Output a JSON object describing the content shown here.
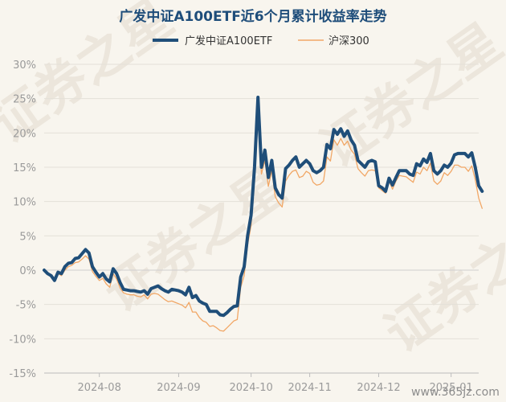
{
  "chart_data": {
    "type": "line",
    "title": "广发中证A100ETF近6个月累计收益率走势",
    "y_ticks": [
      "30%",
      "25%",
      "20%",
      "15%",
      "10%",
      "5%",
      "0%",
      "-5%",
      "-10%",
      "-15%"
    ],
    "x_ticks": [
      "2024-08",
      "2024-09",
      "2024-10",
      "2024-11",
      "2024-12",
      "2025-01"
    ],
    "ylim": [
      -15,
      30
    ],
    "xlim": [
      0,
      126
    ],
    "grid": true,
    "legend_position": "top",
    "series": [
      {
        "name": "广发中证A100ETF",
        "color": "#1f4e79",
        "values": [
          0.0,
          -0.5,
          -0.8,
          -1.5,
          -0.3,
          -0.5,
          0.5,
          1.0,
          1.1,
          1.7,
          1.8,
          2.4,
          3.0,
          2.5,
          0.5,
          -0.3,
          -1.0,
          -0.5,
          -1.3,
          -1.7,
          0.2,
          -0.5,
          -1.8,
          -2.8,
          -2.9,
          -3.0,
          -3.0,
          -3.1,
          -3.2,
          -3.0,
          -3.5,
          -2.7,
          -2.5,
          -2.3,
          -2.7,
          -3.0,
          -3.2,
          -2.8,
          -2.9,
          -3.0,
          -3.2,
          -3.6,
          -2.5,
          -4.0,
          -3.7,
          -4.5,
          -4.8,
          -5.0,
          -6.0,
          -6.0,
          -6.0,
          -6.5,
          -6.6,
          -6.2,
          -5.7,
          -5.3,
          -5.2,
          -1.0,
          0.5,
          5.0,
          8.0,
          15.0,
          25.2,
          15.0,
          17.5,
          13.5,
          16.0,
          12.0,
          11.0,
          10.5,
          14.8,
          15.3,
          16.0,
          16.5,
          15.0,
          15.5,
          16.0,
          15.5,
          14.5,
          14.2,
          14.5,
          15.0,
          18.3,
          17.7,
          20.5,
          19.8,
          20.6,
          19.5,
          20.3,
          19.0,
          18.2,
          16.0,
          15.5,
          15.0,
          15.8,
          16.0,
          15.8,
          12.3,
          12.0,
          11.5,
          13.4,
          12.4,
          13.5,
          14.5,
          14.5,
          14.5,
          14.0,
          13.8,
          15.5,
          15.2,
          16.2,
          15.7,
          17.0,
          14.5,
          14.0,
          14.5,
          15.3,
          15.0,
          15.6,
          16.8,
          17.0,
          17.0,
          17.0,
          16.5,
          17.1,
          15.0,
          12.3,
          11.5
        ]
      },
      {
        "name": "沪深300",
        "color": "#f1a766",
        "values": [
          0.0,
          -0.5,
          -1.0,
          -1.6,
          -0.5,
          -0.8,
          0.0,
          0.5,
          0.7,
          1.1,
          1.2,
          1.6,
          2.1,
          1.6,
          -0.2,
          -0.9,
          -1.5,
          -1.2,
          -2.0,
          -2.5,
          -0.5,
          -1.3,
          -2.6,
          -3.3,
          -3.5,
          -3.6,
          -3.6,
          -3.8,
          -3.9,
          -3.6,
          -4.2,
          -3.5,
          -3.4,
          -3.5,
          -3.9,
          -4.3,
          -4.6,
          -4.5,
          -4.7,
          -4.9,
          -5.1,
          -5.5,
          -4.7,
          -6.1,
          -6.1,
          -6.9,
          -7.4,
          -7.6,
          -8.2,
          -8.1,
          -8.4,
          -8.8,
          -8.9,
          -8.4,
          -7.9,
          -7.4,
          -7.2,
          -2.5,
          -0.8,
          3.7,
          6.5,
          13.5,
          23.5,
          14.0,
          16.0,
          12.2,
          14.5,
          10.7,
          9.8,
          9.2,
          13.0,
          13.8,
          14.4,
          14.6,
          13.5,
          13.7,
          14.4,
          14.1,
          12.8,
          12.4,
          12.5,
          13.0,
          16.5,
          15.9,
          19.0,
          18.2,
          19.2,
          18.2,
          18.8,
          17.5,
          16.9,
          14.8,
          14.2,
          13.7,
          14.5,
          14.6,
          14.5,
          12.0,
          11.6,
          11.2,
          13.0,
          11.8,
          13.0,
          13.8,
          13.7,
          13.6,
          13.2,
          12.8,
          14.3,
          14.0,
          15.0,
          14.5,
          15.6,
          13.0,
          12.5,
          13.0,
          14.2,
          13.8,
          14.4,
          15.3,
          15.3,
          15.0,
          15.0,
          14.4,
          15.2,
          13.2,
          10.5,
          9.0
        ]
      }
    ]
  },
  "watermark": {
    "text": "证券之星",
    "site": "www.365jz.com"
  }
}
